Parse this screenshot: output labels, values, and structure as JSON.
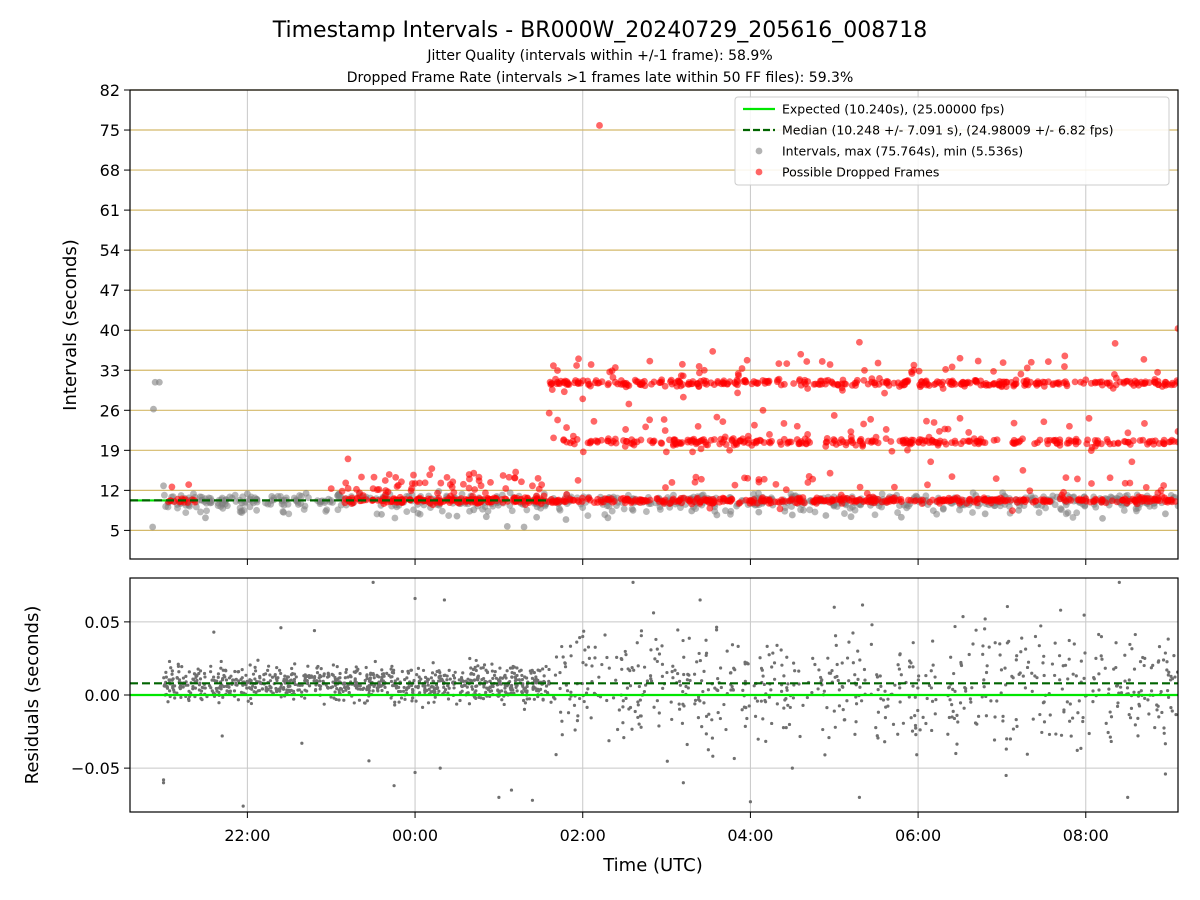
{
  "figure": {
    "title": "Timestamp Intervals - BR000W_20240729_205616_008718",
    "subtitle1": "Jitter Quality (intervals within +/-1 frame): 58.9%",
    "subtitle2": "Dropped Frame Rate (intervals >1 frames late within 50 FF files): 59.3%"
  },
  "colors": {
    "expected": "#00e600",
    "median": "#006400",
    "intervals": "#808080",
    "dropped": "#ff0000",
    "hgrid": "#d4b96a",
    "vgrid": "#c8c8c8"
  },
  "chart_data": [
    {
      "type": "scatter",
      "name": "intervals",
      "ylabel": "Intervals (seconds)",
      "ylim": [
        0,
        82
      ],
      "yticks": [
        "5",
        "12",
        "19",
        "26",
        "33",
        "40",
        "47",
        "54",
        "61",
        "68",
        "75",
        "82"
      ],
      "x_domain_hours": [
        -3.4,
        9.1
      ],
      "x_ticks": [
        "22:00",
        "00:00",
        "02:00",
        "04:00",
        "06:00",
        "08:00"
      ],
      "grid": true,
      "legend_position": "top-right",
      "legend": [
        {
          "kind": "line",
          "label": "Expected (10.240s), (25.00000 fps)"
        },
        {
          "kind": "dashed",
          "label": "Median (10.248 +/- 7.091 s), (24.98009 +/- 6.82 fps)"
        },
        {
          "kind": "gray-dot",
          "label": "Intervals, max (75.764s), min (5.536s)"
        },
        {
          "kind": "red-dot",
          "label": "Possible Dropped Frames"
        }
      ],
      "expected": 10.24,
      "median": 10.248,
      "expected_line_end_hours": -2.9,
      "median_line_end_hours": 1.6,
      "band_levels": [
        10.25,
        20.5,
        30.75
      ],
      "gray_points": [
        [
          -3.1,
          30.9
        ],
        [
          -3.05,
          30.9
        ],
        [
          -3.12,
          26.2
        ],
        [
          -3.13,
          5.6
        ],
        [
          -3.0,
          12.8
        ],
        [
          -2.7,
          9.4
        ],
        [
          -2.5,
          7.2
        ],
        [
          -2.0,
          11.4
        ],
        [
          -1.3,
          11.5
        ],
        [
          -0.9,
          11.1
        ],
        [
          -0.4,
          7.8
        ],
        [
          0.5,
          7.5
        ],
        [
          0.7,
          8.6
        ],
        [
          0.85,
          7.4
        ],
        [
          1.1,
          5.7
        ],
        [
          1.3,
          5.6
        ],
        [
          1.45,
          7.3
        ],
        [
          1.8,
          6.9
        ],
        [
          2.3,
          7.2
        ],
        [
          2.6,
          8.5
        ],
        [
          3.3,
          8.4
        ],
        [
          3.6,
          7.7
        ],
        [
          4.1,
          8.2
        ],
        [
          4.5,
          7.7
        ],
        [
          4.9,
          7.6
        ],
        [
          5.2,
          7.4
        ],
        [
          5.8,
          7.3
        ],
        [
          6.3,
          8.7
        ],
        [
          6.8,
          7.9
        ],
        [
          7.2,
          8.5
        ],
        [
          7.7,
          8.8
        ],
        [
          8.2,
          7.1
        ],
        [
          8.6,
          8.8
        ],
        [
          8.95,
          7.9
        ],
        [
          9.1,
          9.3
        ]
      ],
      "red_points": [
        [
          -2.9,
          12.6
        ],
        [
          -2.7,
          13.0
        ],
        [
          -1.0,
          12.3
        ],
        [
          -0.8,
          17.5
        ],
        [
          -0.5,
          12.3
        ],
        [
          -0.2,
          12.9
        ],
        [
          0.0,
          13.2
        ],
        [
          0.2,
          15.8
        ],
        [
          0.45,
          13.5
        ],
        [
          0.7,
          15.0
        ],
        [
          0.9,
          13.4
        ],
        [
          1.05,
          14.6
        ],
        [
          1.2,
          15.2
        ],
        [
          1.4,
          12.8
        ],
        [
          1.6,
          25.5
        ],
        [
          1.65,
          33.8
        ],
        [
          1.7,
          24.3
        ],
        [
          1.95,
          35.0
        ],
        [
          2.0,
          28.0
        ],
        [
          2.1,
          34.0
        ],
        [
          2.2,
          75.8
        ],
        [
          2.35,
          32.9
        ],
        [
          2.55,
          27.1
        ],
        [
          2.8,
          34.6
        ],
        [
          3.2,
          28.3
        ],
        [
          3.45,
          33.0
        ],
        [
          3.55,
          36.3
        ],
        [
          3.9,
          33.3
        ],
        [
          4.15,
          26.0
        ],
        [
          4.6,
          35.8
        ],
        [
          4.95,
          34.0
        ],
        [
          5.3,
          37.9
        ],
        [
          5.6,
          29.0
        ],
        [
          5.95,
          33.9
        ],
        [
          6.1,
          24.1
        ],
        [
          6.5,
          35.1
        ],
        [
          6.9,
          32.8
        ],
        [
          7.35,
          34.4
        ],
        [
          7.75,
          35.5
        ],
        [
          8.35,
          37.7
        ],
        [
          9.1,
          40.3
        ],
        [
          3.35,
          14.3
        ],
        [
          4.1,
          13.9
        ],
        [
          4.95,
          15.0
        ],
        [
          5.35,
          23.6
        ],
        [
          6.15,
          17.0
        ],
        [
          7.25,
          15.5
        ],
        [
          7.9,
          14.0
        ],
        [
          8.55,
          17.0
        ],
        [
          9.1,
          22.3
        ],
        [
          2.75,
          23.1
        ],
        [
          3.6,
          24.8
        ],
        [
          4.4,
          23.7
        ],
        [
          5.0,
          25.1
        ],
        [
          6.5,
          24.6
        ],
        [
          7.5,
          24.0
        ],
        [
          8.7,
          23.7
        ]
      ]
    },
    {
      "type": "scatter",
      "name": "residuals",
      "ylabel": "Residuals (seconds)",
      "xlabel": "Time (UTC)",
      "ylim": [
        -0.08,
        0.08
      ],
      "yticks": [
        "−0.05",
        "0.00",
        "0.05"
      ],
      "ytick_values": [
        -0.05,
        0.0,
        0.05
      ],
      "x_domain_hours": [
        -3.4,
        9.1
      ],
      "expected": 0.0,
      "median": 0.008,
      "grid": true,
      "outliers": [
        [
          -3.0,
          -0.058
        ],
        [
          -3.0,
          -0.06
        ],
        [
          -2.3,
          -0.028
        ],
        [
          -2.4,
          0.043
        ],
        [
          -2.05,
          -0.076
        ],
        [
          -1.6,
          0.046
        ],
        [
          -1.35,
          -0.033
        ],
        [
          -1.2,
          0.044
        ],
        [
          -0.55,
          -0.045
        ],
        [
          -0.5,
          0.077
        ],
        [
          -0.25,
          -0.062
        ],
        [
          0.0,
          0.066
        ],
        [
          0.0,
          -0.053
        ],
        [
          0.3,
          -0.05
        ],
        [
          0.35,
          0.065
        ],
        [
          1.0,
          -0.07
        ],
        [
          1.15,
          -0.065
        ],
        [
          1.4,
          -0.072
        ],
        [
          2.0,
          0.04
        ],
        [
          2.6,
          0.077
        ],
        [
          3.2,
          -0.06
        ],
        [
          3.4,
          0.065
        ],
        [
          4.0,
          -0.073
        ],
        [
          4.5,
          -0.05
        ],
        [
          5.0,
          0.06
        ],
        [
          5.3,
          -0.07
        ],
        [
          5.45,
          0.048
        ],
        [
          6.45,
          -0.04
        ],
        [
          6.8,
          0.052
        ],
        [
          7.05,
          -0.055
        ],
        [
          7.4,
          0.04
        ],
        [
          7.7,
          0.058
        ],
        [
          8.4,
          0.077
        ],
        [
          8.5,
          -0.07
        ],
        [
          8.95,
          -0.054
        ]
      ]
    }
  ]
}
